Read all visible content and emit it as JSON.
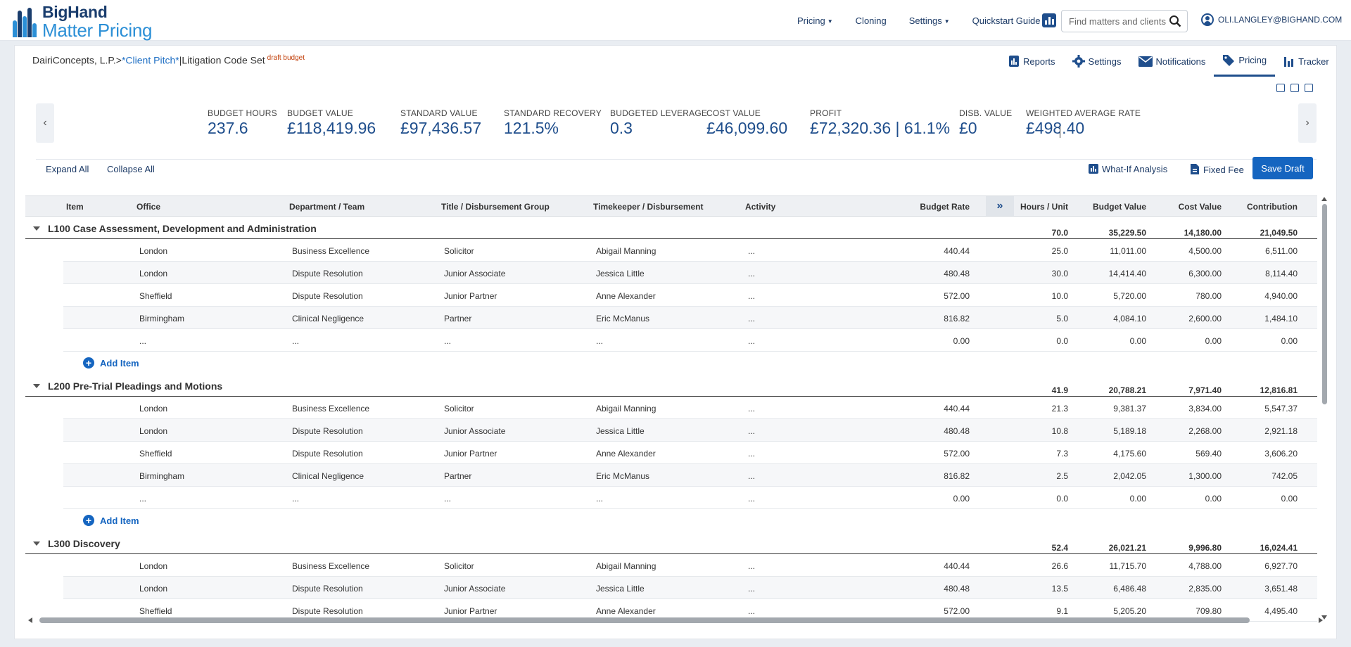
{
  "app": {
    "logo_line1": "BigHand",
    "logo_line2": "Matter Pricing"
  },
  "nav": {
    "links": [
      "Pricing",
      "Cloning",
      "Settings",
      "Quickstart Guide"
    ],
    "search_placeholder": "Find matters and clients",
    "user": "OLI.LANGLEY@BIGHAND.COM"
  },
  "breadcrumb": {
    "client_name": "DairiConcepts, L.P.>",
    "pitch": "*Client Pitch*",
    "sep": "|",
    "code_set": "Litigation Code Set",
    "status": "draft budget"
  },
  "tabs": [
    "Reports",
    "Settings",
    "Notifications",
    "Pricing",
    "Tracker"
  ],
  "kpis": [
    {
      "label": "BUDGET HOURS",
      "value": "237.6"
    },
    {
      "label": "BUDGET VALUE",
      "value": "£118,419.96"
    },
    {
      "label": "STANDARD VALUE",
      "value": "£97,436.57"
    },
    {
      "label": "STANDARD RECOVERY",
      "value": "121.5%"
    },
    {
      "label": "BUDGETED LEVERAGE",
      "value": "0.3"
    },
    {
      "label": "COST VALUE",
      "value": "£46,099.60"
    },
    {
      "label": "PROFIT",
      "value": "£72,320.36 | 61.1%"
    },
    {
      "label": "DISB. VALUE",
      "value": "£0"
    },
    {
      "label": "WEIGHTED AVERAGE RATE",
      "value": "£498.40"
    }
  ],
  "actions": {
    "expand_all": "Expand All",
    "collapse_all": "Collapse All",
    "what_if": "What-If Analysis",
    "fixed_fee": "Fixed Fee",
    "save_draft": "Save Draft"
  },
  "columns": [
    "Item",
    "Office",
    "Department / Team",
    "Title / Disbursement Group",
    "Timekeeper / Disbursement",
    "Activity",
    "Budget Rate",
    "Hours / Unit",
    "Budget Value",
    "Cost Value",
    "Contribution"
  ],
  "add_item_label": "Add Item",
  "groups": [
    {
      "title": "L100 Case Assessment, Development and Administration",
      "totals": {
        "hours": "70.0",
        "budget_value": "35,229.50",
        "cost_value": "14,180.00",
        "contribution": "21,049.50"
      },
      "rows": [
        [
          "London",
          "Business Excellence",
          "Solicitor",
          "Abigail Manning",
          "...",
          "440.44",
          "25.0",
          "11,011.00",
          "4,500.00",
          "6,511.00"
        ],
        [
          "London",
          "Dispute Resolution",
          "Junior Associate",
          "Jessica Little",
          "...",
          "480.48",
          "30.0",
          "14,414.40",
          "6,300.00",
          "8,114.40"
        ],
        [
          "Sheffield",
          "Dispute Resolution",
          "Junior Partner",
          "Anne Alexander",
          "...",
          "572.00",
          "10.0",
          "5,720.00",
          "780.00",
          "4,940.00"
        ],
        [
          "Birmingham",
          "Clinical Negligence",
          "Partner",
          "Eric McManus",
          "...",
          "816.82",
          "5.0",
          "4,084.10",
          "2,600.00",
          "1,484.10"
        ],
        [
          "...",
          "...",
          "...",
          "...",
          "...",
          "0.00",
          "0.0",
          "0.00",
          "0.00",
          "0.00"
        ]
      ]
    },
    {
      "title": "L200 Pre-Trial Pleadings and Motions",
      "totals": {
        "hours": "41.9",
        "budget_value": "20,788.21",
        "cost_value": "7,971.40",
        "contribution": "12,816.81"
      },
      "rows": [
        [
          "London",
          "Business Excellence",
          "Solicitor",
          "Abigail Manning",
          "...",
          "440.44",
          "21.3",
          "9,381.37",
          "3,834.00",
          "5,547.37"
        ],
        [
          "London",
          "Dispute Resolution",
          "Junior Associate",
          "Jessica Little",
          "...",
          "480.48",
          "10.8",
          "5,189.18",
          "2,268.00",
          "2,921.18"
        ],
        [
          "Sheffield",
          "Dispute Resolution",
          "Junior Partner",
          "Anne Alexander",
          "...",
          "572.00",
          "7.3",
          "4,175.60",
          "569.40",
          "3,606.20"
        ],
        [
          "Birmingham",
          "Clinical Negligence",
          "Partner",
          "Eric McManus",
          "...",
          "816.82",
          "2.5",
          "2,042.05",
          "1,300.00",
          "742.05"
        ],
        [
          "...",
          "...",
          "...",
          "...",
          "...",
          "0.00",
          "0.0",
          "0.00",
          "0.00",
          "0.00"
        ]
      ]
    },
    {
      "title": "L300 Discovery",
      "totals": {
        "hours": "52.4",
        "budget_value": "26,021.21",
        "cost_value": "9,996.80",
        "contribution": "16,024.41"
      },
      "rows": [
        [
          "London",
          "Business Excellence",
          "Solicitor",
          "Abigail Manning",
          "...",
          "440.44",
          "26.6",
          "11,715.70",
          "4,788.00",
          "6,927.70"
        ],
        [
          "London",
          "Dispute Resolution",
          "Junior Associate",
          "Jessica Little",
          "...",
          "480.48",
          "13.5",
          "6,486.48",
          "2,835.00",
          "3,651.48"
        ],
        [
          "Sheffield",
          "Dispute Resolution",
          "Junior Partner",
          "Anne Alexander",
          "...",
          "572.00",
          "9.1",
          "5,205.20",
          "709.80",
          "4,495.40"
        ]
      ]
    }
  ],
  "colors": {
    "brand": "#1f4e8c",
    "accent": "#1565c0",
    "status": "#c2410c"
  }
}
